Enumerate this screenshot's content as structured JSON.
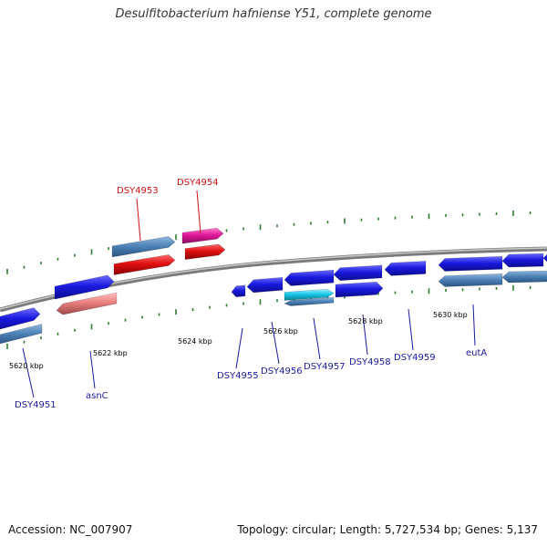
{
  "title": "Desulfitobacterium hafniense Y51, complete genome",
  "footer": {
    "accession": "Accession: NC_007907",
    "topology": "Topology: circular; Length: 5,727,534 bp; Genes: 5,137"
  },
  "colors": {
    "backbone": "#8a8a8a",
    "tick": "#2e7d32",
    "gene_blue": "#1a1ae0",
    "gene_steel": "#4a7fb5",
    "gene_red": "#e01010",
    "gene_pink": "#e0189a",
    "gene_salmon": "#e98080",
    "gene_cyan": "#18c8e8",
    "label_forward": "#cc1111",
    "label_reverse": "#1a1aa0"
  },
  "ticks": [
    {
      "label": "5620 kbp"
    },
    {
      "label": "5622 kbp"
    },
    {
      "label": "5624 kbp"
    },
    {
      "label": "5626 kbp"
    },
    {
      "label": "5628 kbp"
    },
    {
      "label": "5630 kbp"
    }
  ],
  "gene_labels": [
    {
      "name": "DSY4951",
      "strand": "reverse"
    },
    {
      "name": "asnC",
      "strand": "reverse"
    },
    {
      "name": "DSY4953",
      "strand": "forward"
    },
    {
      "name": "DSY4954",
      "strand": "forward"
    },
    {
      "name": "DSY4955",
      "strand": "reverse"
    },
    {
      "name": "DSY4956",
      "strand": "reverse"
    },
    {
      "name": "DSY4957",
      "strand": "reverse"
    },
    {
      "name": "DSY4958",
      "strand": "reverse"
    },
    {
      "name": "DSY4959",
      "strand": "reverse"
    },
    {
      "name": "eutA",
      "strand": "reverse"
    }
  ]
}
